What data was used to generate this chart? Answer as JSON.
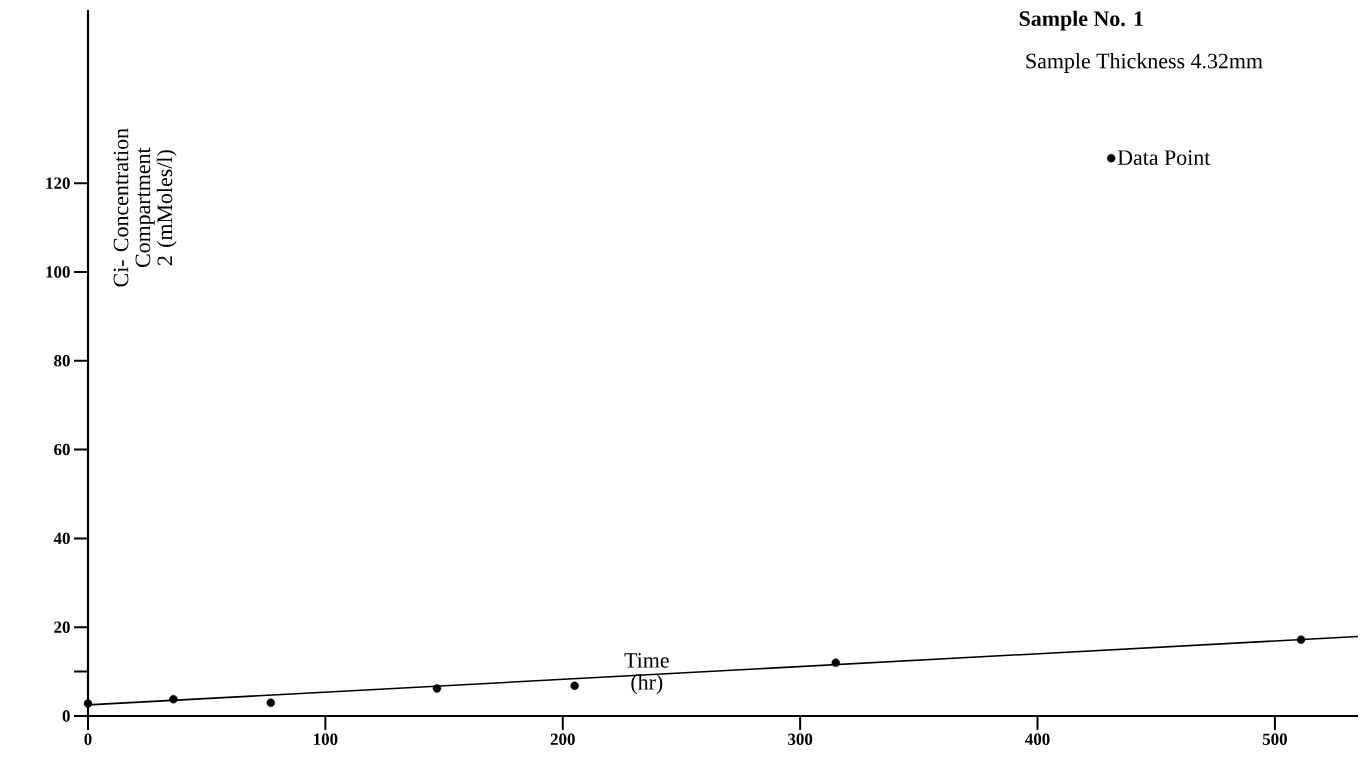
{
  "chart_data": {
    "type": "scatter",
    "title": "Sample No. 1",
    "subtitle": "Sample Thickness 4.32mm",
    "xlabel": "Time (hr)",
    "ylabel": "Ci- Concentration Compartment 2 (mMoles/l)",
    "series": [
      {
        "name": "Data Point",
        "color": "#000000",
        "marker": "circle",
        "x": [
          0,
          36,
          77,
          147,
          205,
          315,
          511
        ],
        "values": [
          2.8,
          3.8,
          3.0,
          6.2,
          6.8,
          12,
          17.2
        ]
      },
      {
        "type": "line",
        "color": "#000000",
        "marker": "none",
        "x": [
          0,
          535
        ],
        "values": [
          2.5,
          17.9
        ]
      }
    ],
    "xlim": [
      0,
      535
    ],
    "ylim": [
      0,
      159
    ],
    "xticks": [
      0,
      100,
      200,
      300,
      400,
      500
    ],
    "yticks": [
      0,
      {
        "value": 10,
        "label": null
      },
      20,
      40,
      60,
      80,
      100,
      120
    ],
    "grid": false,
    "legend": "top right"
  }
}
